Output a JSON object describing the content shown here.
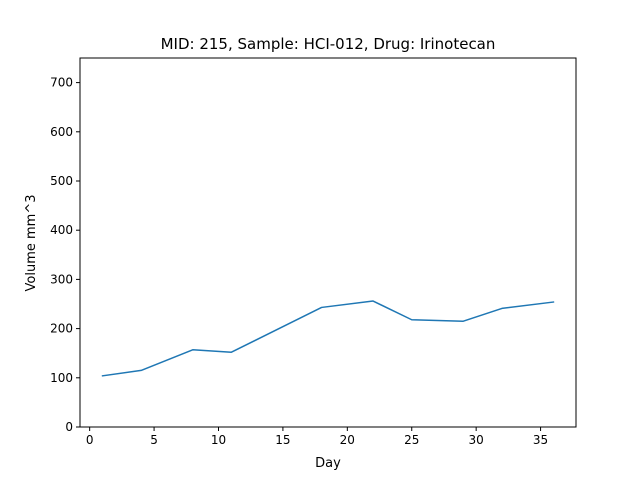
{
  "chart_data": {
    "type": "line",
    "title": "MID: 215, Sample: HCI-012, Drug: Irinotecan",
    "xlabel": "Day",
    "ylabel": "Volume mm^3",
    "xlim": [
      -0.75,
      37.75
    ],
    "ylim": [
      0,
      750
    ],
    "xticks": [
      0,
      5,
      10,
      15,
      20,
      25,
      30,
      35
    ],
    "yticks": [
      0,
      100,
      200,
      300,
      400,
      500,
      600,
      700
    ],
    "grid": false,
    "legend": "none",
    "series": [
      {
        "color": "#1f77b4",
        "x": [
          1,
          4,
          8,
          11,
          18,
          22,
          25,
          29,
          32,
          36
        ],
        "y": [
          104,
          115,
          157,
          152,
          243,
          256,
          218,
          215,
          241,
          254
        ]
      }
    ]
  }
}
